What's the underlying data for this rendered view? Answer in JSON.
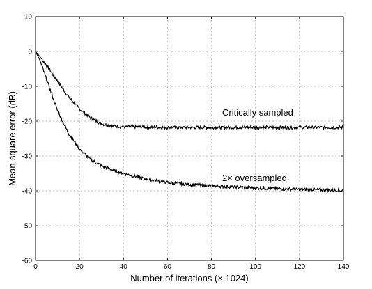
{
  "chart_data": {
    "type": "line",
    "title": "",
    "xlabel": "Number of iterations (× 1024)",
    "ylabel": "Mean-square error (dB)",
    "xlim": [
      0,
      140
    ],
    "ylim": [
      -60,
      10
    ],
    "xticks": [
      0,
      20,
      40,
      60,
      80,
      100,
      120,
      140
    ],
    "yticks": [
      10,
      0,
      -10,
      -20,
      -30,
      -40,
      -50,
      -60
    ],
    "grid": true,
    "legend": "none",
    "series": [
      {
        "name": "Critically sampled",
        "x": [
          0,
          2,
          5,
          10,
          15,
          20,
          25,
          30,
          35,
          40,
          50,
          60,
          80,
          100,
          120,
          140
        ],
        "y": [
          0,
          -1.5,
          -4,
          -8.5,
          -13,
          -16.5,
          -19,
          -20.8,
          -21.4,
          -21.6,
          -21.7,
          -21.8,
          -21.8,
          -21.8,
          -21.8,
          -21.8
        ]
      },
      {
        "name": "2× oversampled",
        "x": [
          0,
          2,
          5,
          10,
          15,
          20,
          25,
          30,
          35,
          40,
          50,
          60,
          70,
          80,
          100,
          120,
          140
        ],
        "y": [
          0,
          -2.5,
          -8,
          -17,
          -23.5,
          -28,
          -31,
          -32.8,
          -34,
          -35,
          -36.6,
          -37.6,
          -38.2,
          -38.6,
          -39.2,
          -39.6,
          -39.9
        ]
      }
    ],
    "annotations": [
      "Critically sampled",
      "2× oversampled"
    ]
  }
}
